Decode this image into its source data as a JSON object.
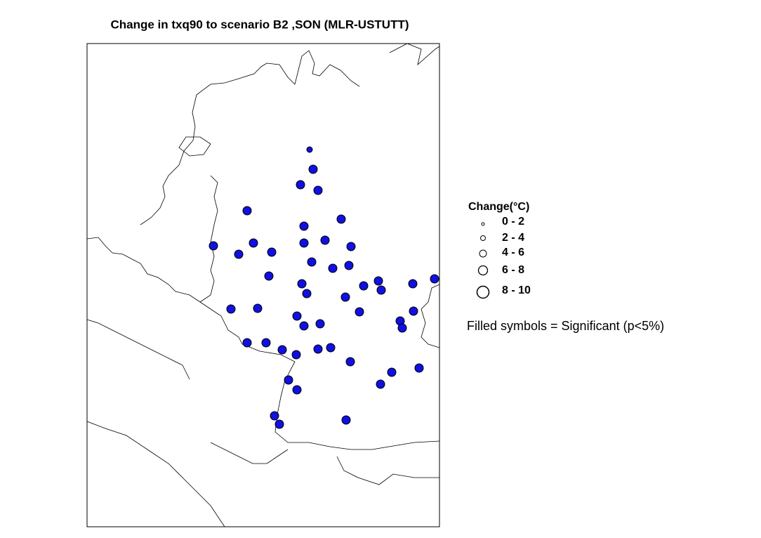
{
  "title": "Change in txq90 to scenario B2 ,SON (MLR-USTUTT)",
  "legend": {
    "title": "Change(°C)",
    "items": [
      "0 - 2",
      "2 - 4",
      "4 - 6",
      "6 - 8",
      "8 - 10"
    ]
  },
  "note": "Filled symbols = Significant (p<5%)"
}
